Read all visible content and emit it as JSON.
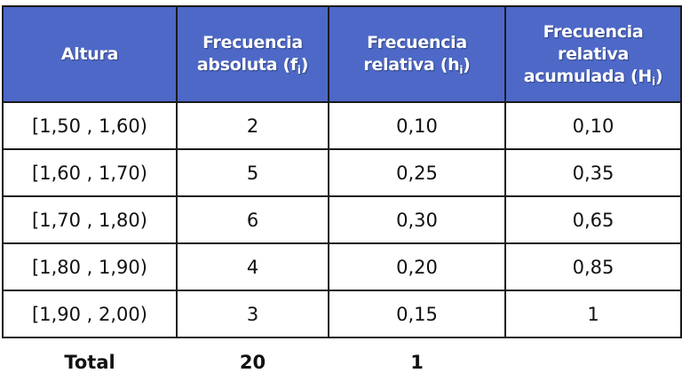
{
  "table": {
    "headers": [
      {
        "text": "Altura",
        "sub": "",
        "end": ""
      },
      {
        "text": "Frecuencia absoluta (f",
        "sub": "i",
        "end": ")"
      },
      {
        "text": "Frecuencia relativa (h",
        "sub": "i",
        "end": ")"
      },
      {
        "text": "Frecuencia relativa acumulada (H",
        "sub": "i",
        "end": ")"
      }
    ],
    "rows": [
      [
        "[1,50 , 1,60)",
        "2",
        "0,10",
        "0,10"
      ],
      [
        "[1,60 , 1,70)",
        "5",
        "0,25",
        "0,35"
      ],
      [
        "[1,70 , 1,80)",
        "6",
        "0,30",
        "0,65"
      ],
      [
        "[1,80 , 1,90)",
        "4",
        "0,20",
        "0,85"
      ],
      [
        "[1,90 , 2,00)",
        "3",
        "0,15",
        "1"
      ]
    ],
    "total": {
      "label": "Total",
      "absolute": "20",
      "relative": "1",
      "cumulative": ""
    },
    "header_color": "#4d68c7"
  }
}
